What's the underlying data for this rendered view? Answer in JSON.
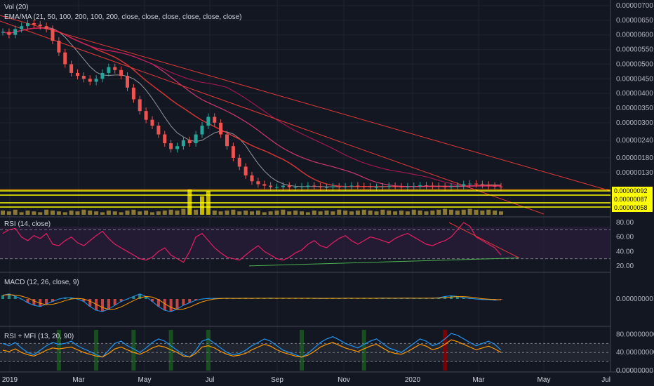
{
  "chart_data": [
    {
      "type": "candlestick",
      "panel": "price",
      "legend": [
        "Vol (20)",
        "EMA/MA (21, 50, 100, 200, 100, 200, close, close, close, close, close, close)"
      ],
      "ylim": [
        0.0,
        7e-07
      ],
      "y_ticks": [
        "0.00000700",
        "0.00000650",
        "0.00000600",
        "0.00000550",
        "0.00000500",
        "0.00000450",
        "0.00000400",
        "0.00000350",
        "0.00000300",
        "0.00000240",
        "0.00000180",
        "0.00000130"
      ],
      "price_tags": [
        {
          "text": "0.00000092",
          "color": "#ffff00"
        },
        {
          "text": "0.00000087",
          "color": "#ffff00"
        },
        {
          "text": "0.00000058",
          "color": "#ffff00"
        }
      ],
      "close_series": [
        6.1,
        6.0,
        6.2,
        6.3,
        6.4,
        6.35,
        6.3,
        6.2,
        5.8,
        5.4,
        5.0,
        4.7,
        4.6,
        4.5,
        4.4,
        4.5,
        4.7,
        4.9,
        4.8,
        4.6,
        4.2,
        3.8,
        3.4,
        3.1,
        2.9,
        2.6,
        2.3,
        2.1,
        2.2,
        2.4,
        2.3,
        2.6,
        2.9,
        3.2,
        3.0,
        2.6,
        2.2,
        1.8,
        1.5,
        1.2,
        1.0,
        0.9,
        0.85,
        0.8,
        0.8,
        0.85,
        0.8,
        0.8,
        0.82,
        0.85,
        0.82,
        0.8,
        0.8,
        0.82,
        0.8,
        0.82,
        0.85,
        0.83,
        0.82,
        0.8,
        0.8,
        0.82,
        0.84,
        0.82,
        0.8,
        0.82,
        0.84,
        0.86,
        0.85,
        0.84,
        0.82,
        0.8,
        0.82,
        0.85,
        0.9,
        0.92,
        0.9,
        0.88,
        0.85,
        0.82,
        0.8
      ],
      "volume_series": [
        0.5,
        0.4,
        0.6,
        0.3,
        0.5,
        0.4,
        0.3,
        0.6,
        0.5,
        0.4,
        0.3,
        0.5,
        0.4,
        0.6,
        0.5,
        0.4,
        0.3,
        0.5,
        0.4,
        0.3,
        0.5,
        0.6,
        0.4,
        0.5,
        0.3,
        0.4,
        0.5,
        0.6,
        0.5,
        0.7,
        3.0,
        0.6,
        2.2,
        2.8,
        0.5,
        0.4,
        0.5,
        0.6,
        0.4,
        0.5,
        0.4,
        0.5,
        0.3,
        0.4,
        0.5,
        0.6,
        0.4,
        0.5,
        0.4,
        0.3,
        0.5,
        0.4,
        0.5,
        0.4,
        0.6,
        0.5,
        0.4,
        0.5,
        0.6,
        0.5,
        0.4,
        0.6,
        0.5,
        0.4,
        0.5,
        0.4,
        0.6,
        0.5,
        0.4,
        0.5,
        0.6,
        0.7,
        0.6,
        0.5,
        0.6,
        0.7,
        0.6,
        0.5,
        0.6,
        0.5,
        0.4
      ]
    },
    {
      "type": "line",
      "panel": "rsi",
      "legend": "RSI (14, close)",
      "ylim": [
        15,
        85
      ],
      "y_ticks": [
        "80.00",
        "60.00",
        "40.00",
        "20.00"
      ],
      "bands": [
        30,
        70
      ],
      "values": [
        65,
        70,
        72,
        60,
        55,
        62,
        58,
        65,
        50,
        48,
        55,
        60,
        52,
        48,
        55,
        62,
        68,
        58,
        50,
        45,
        40,
        35,
        30,
        28,
        32,
        40,
        45,
        35,
        30,
        25,
        40,
        60,
        65,
        55,
        45,
        38,
        32,
        30,
        28,
        35,
        42,
        48,
        40,
        35,
        30,
        28,
        32,
        38,
        42,
        50,
        55,
        48,
        45,
        52,
        58,
        62,
        55,
        50,
        55,
        60,
        58,
        55,
        52,
        58,
        62,
        65,
        60,
        55,
        50,
        48,
        52,
        55,
        60,
        70,
        80,
        75,
        60,
        55,
        50,
        45,
        35
      ]
    },
    {
      "type": "histogram+line",
      "panel": "macd",
      "legend": "MACD (12, 26, close, 9)",
      "y_ticks": [
        "0.00000000"
      ],
      "values": [
        0.3,
        0.4,
        0.2,
        0.0,
        -0.3,
        -0.5,
        -0.6,
        -0.4,
        -0.2,
        0.0,
        0.1,
        0.1,
        0.0,
        -0.2,
        -0.6,
        -0.9,
        -1.0,
        -0.8,
        -0.5,
        -0.2,
        0.0,
        0.2,
        0.4,
        0.2,
        -0.2,
        -0.6,
        -0.9,
        -1.0,
        -0.8,
        -0.5,
        -0.3,
        -0.1,
        0.0,
        0.05,
        0.05,
        0.05,
        0.06,
        0.05,
        0.05,
        0.06,
        0.05,
        0.06,
        0.05,
        0.07,
        0.05,
        0.06,
        0.05,
        0.06,
        0.05,
        0.06,
        0.05,
        0.04,
        0.05,
        0.06,
        0.05,
        0.06,
        0.06,
        0.05,
        0.06,
        0.05,
        0.06,
        0.07,
        0.06,
        0.05,
        0.06,
        0.07,
        0.06,
        0.05,
        0.06,
        0.07,
        0.1,
        0.2,
        0.25,
        0.2,
        0.1,
        0.05,
        0.0,
        -0.05,
        -0.05,
        -0.1,
        -0.05
      ]
    },
    {
      "type": "line",
      "panel": "rsi_mfi",
      "legend": "RSI + MFI (13, 20, 90)",
      "ylim": [
        0,
        90
      ],
      "y_ticks": [
        "80.00000000",
        "40.00000000",
        "0.00000000"
      ],
      "rsi": [
        60,
        55,
        62,
        50,
        40,
        35,
        45,
        55,
        62,
        58,
        60,
        65,
        55,
        48,
        42,
        35,
        30,
        45,
        60,
        65,
        55,
        48,
        40,
        50,
        62,
        70,
        65,
        55,
        45,
        35,
        30,
        45,
        65,
        70,
        60,
        50,
        40,
        35,
        38,
        45,
        55,
        62,
        70,
        65,
        55,
        45,
        40,
        35,
        30,
        38,
        50,
        62,
        70,
        75,
        68,
        60,
        55,
        50,
        58,
        65,
        70,
        60,
        50,
        45,
        40,
        50,
        60,
        70,
        65,
        55,
        60,
        70,
        82,
        78,
        70,
        62,
        55,
        60,
        65,
        58,
        45
      ],
      "mfi": [
        45,
        42,
        48,
        40,
        35,
        32,
        38,
        45,
        50,
        48,
        50,
        52,
        46,
        40,
        36,
        32,
        30,
        38,
        48,
        52,
        46,
        40,
        36,
        42,
        50,
        55,
        52,
        46,
        40,
        32,
        30,
        38,
        52,
        55,
        50,
        42,
        36,
        32,
        34,
        38,
        46,
        52,
        58,
        54,
        46,
        40,
        36,
        32,
        30,
        34,
        42,
        52,
        58,
        62,
        56,
        50,
        46,
        42,
        48,
        54,
        58,
        50,
        42,
        38,
        36,
        42,
        50,
        58,
        54,
        46,
        50,
        58,
        68,
        64,
        58,
        52,
        46,
        50,
        54,
        48,
        40
      ],
      "green_highlights": [
        9,
        15,
        21,
        27,
        33,
        48,
        58
      ],
      "red_highlights": [
        71
      ]
    }
  ],
  "x_axis": [
    "2019",
    "Mar",
    "May",
    "Jul",
    "Sep",
    "Nov",
    "2020",
    "Mar",
    "May",
    "Jul"
  ]
}
